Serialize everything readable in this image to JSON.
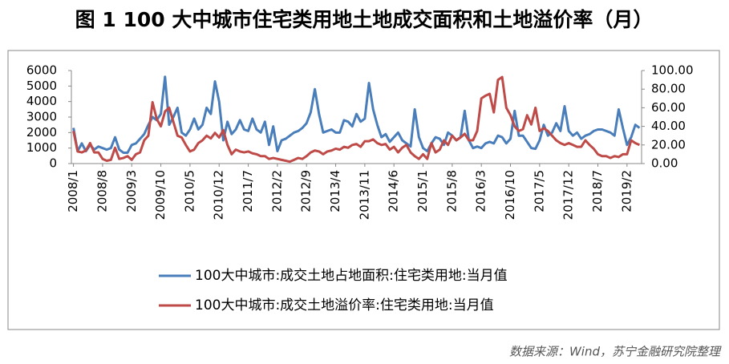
{
  "chart_data": {
    "type": "line",
    "title": "图 1 100 大中城市住宅类用地土地成交面积和土地溢价率（月）",
    "source": "数据来源：Wind，苏宁金融研究院整理",
    "categories": [
      "2008/1",
      null,
      null,
      null,
      null,
      null,
      null,
      "2008/8",
      null,
      null,
      null,
      null,
      null,
      null,
      "2009/3",
      null,
      null,
      null,
      null,
      null,
      null,
      "2009/10",
      null,
      null,
      null,
      null,
      null,
      null,
      "2010/5",
      null,
      null,
      null,
      null,
      null,
      null,
      "2010/12",
      null,
      null,
      null,
      null,
      null,
      null,
      "2011/7",
      null,
      null,
      null,
      null,
      null,
      null,
      "2012/2",
      null,
      null,
      null,
      null,
      null,
      null,
      "2012/9",
      null,
      null,
      null,
      null,
      null,
      null,
      "2013/4",
      null,
      null,
      null,
      null,
      null,
      null,
      "2013/11",
      null,
      null,
      null,
      null,
      null,
      null,
      "2014/6",
      null,
      null,
      null,
      null,
      null,
      null,
      "2015/1",
      null,
      null,
      null,
      null,
      null,
      null,
      "2015/8",
      null,
      null,
      null,
      null,
      null,
      null,
      "2016/3",
      null,
      null,
      null,
      null,
      null,
      null,
      "2016/10",
      null,
      null,
      null,
      null,
      null,
      null,
      "2017/5",
      null,
      null,
      null,
      null,
      null,
      null,
      "2017/12",
      null,
      null,
      null,
      null,
      null,
      null,
      "2018/7",
      null,
      null,
      null,
      null,
      null,
      null,
      "2019/2",
      null,
      null,
      null
    ],
    "series": [
      {
        "name": "100大中城市:成交土地占地面积:住宅类用地:当月值",
        "color": "#4a7ebb",
        "values": [
          2300,
          800,
          1300,
          800,
          1200,
          900,
          1100,
          1000,
          900,
          1000,
          1700,
          900,
          700,
          700,
          1200,
          1300,
          1600,
          1900,
          2500,
          3000,
          2800,
          3200,
          5600,
          2500,
          3000,
          3600,
          2000,
          1800,
          2200,
          2900,
          2200,
          2500,
          3600,
          3200,
          5300,
          4000,
          1500,
          2700,
          1900,
          2200,
          2800,
          2200,
          2100,
          2900,
          2200,
          2000,
          2700,
          1200,
          2400,
          800,
          1500,
          1600,
          1800,
          2000,
          2100,
          2300,
          2600,
          3300,
          4800,
          3200,
          2000,
          2100,
          2200,
          2000,
          2000,
          2800,
          2700,
          2400,
          3200,
          2700,
          2900,
          5200,
          3500,
          2500,
          1700,
          1900,
          1400,
          1700,
          2000,
          1500,
          1300,
          1100,
          3500,
          1700,
          1000,
          800,
          1300,
          1700,
          1600,
          1200,
          2000,
          1800,
          1500,
          1700,
          3400,
          1500,
          1000,
          1100,
          1000,
          1300,
          1400,
          1300,
          1800,
          1700,
          1300,
          1600,
          3400,
          1800,
          1800,
          1400,
          1000,
          950,
          1500,
          2500,
          1800,
          2000,
          2600,
          2100,
          3700,
          2100,
          1800,
          2000,
          1600,
          1800,
          1900,
          2100,
          2200,
          2200,
          2100,
          2000,
          1800,
          3500,
          2300,
          1200,
          1700,
          2500,
          2300
        ]
      },
      {
        "name": "100大中城市:成交土地溢价率:住宅类用地:当月值",
        "color": "#be4b48",
        "axis": "y2",
        "values": [
          35,
          13,
          12,
          14,
          22,
          12,
          12,
          5,
          3,
          4,
          17,
          5,
          6,
          8,
          4,
          10,
          12,
          25,
          30,
          66,
          48,
          40,
          56,
          60,
          45,
          30,
          28,
          20,
          13,
          15,
          22,
          25,
          30,
          27,
          33,
          28,
          36,
          20,
          10,
          15,
          13,
          12,
          13,
          11,
          10,
          8,
          8,
          5,
          6,
          5,
          4,
          3,
          2,
          4,
          6,
          5,
          8,
          12,
          14,
          13,
          10,
          13,
          14,
          16,
          15,
          18,
          17,
          20,
          21,
          18,
          24,
          24,
          26,
          22,
          20,
          21,
          15,
          18,
          12,
          17,
          20,
          12,
          8,
          5,
          10,
          5,
          22,
          12,
          15,
          25,
          20,
          30,
          25,
          28,
          32,
          25,
          25,
          35,
          70,
          73,
          75,
          55,
          90,
          93,
          60,
          52,
          40,
          35,
          37,
          52,
          42,
          60,
          35,
          38,
          35,
          30,
          25,
          22,
          20,
          22,
          20,
          18,
          18,
          25,
          20,
          16,
          10,
          8,
          8,
          6,
          8,
          7,
          10,
          10,
          25,
          22,
          20
        ]
      }
    ],
    "ylim": [
      0,
      6000
    ],
    "yticks": [
      0,
      1000,
      2000,
      3000,
      4000,
      5000,
      6000
    ],
    "y2lim": [
      0,
      100
    ],
    "y2ticks": [
      {
        "value": 0,
        "label": "0.00"
      },
      {
        "value": 20,
        "label": "20.00"
      },
      {
        "value": 40,
        "label": "40.00"
      },
      {
        "value": 60,
        "label": "60.00"
      },
      {
        "value": 80,
        "label": "80.00"
      },
      {
        "value": 100,
        "label": "100.00"
      }
    ],
    "grid": false
  }
}
